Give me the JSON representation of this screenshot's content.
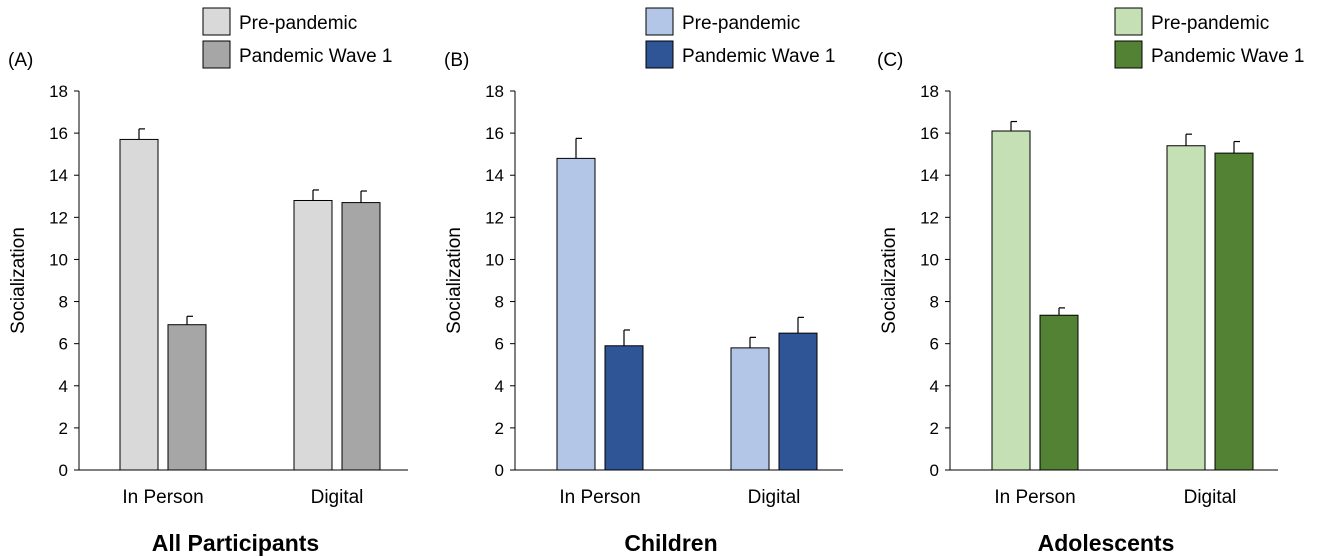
{
  "chart_data": [
    {
      "type": "bar",
      "panel_label": "(A)",
      "title": "All Participants",
      "ylabel": "Socialization",
      "xlabel": "",
      "ylim": [
        0,
        18
      ],
      "yticks": [
        "0",
        "2",
        "4",
        "6",
        "8",
        "10",
        "12",
        "14",
        "16",
        "18"
      ],
      "categories": [
        "In Person",
        "Digital"
      ],
      "series": [
        {
          "name": "Pre-pandemic",
          "values": [
            15.7,
            12.8
          ],
          "errors": [
            0.5,
            0.5
          ],
          "color": "#d9d9d9"
        },
        {
          "name": "Pandemic Wave 1",
          "values": [
            6.9,
            12.7
          ],
          "errors": [
            0.4,
            0.55
          ],
          "color": "#a6a6a6"
        }
      ]
    },
    {
      "type": "bar",
      "panel_label": "(B)",
      "title": "Children",
      "ylabel": "Socialization",
      "xlabel": "",
      "ylim": [
        0,
        18
      ],
      "yticks": [
        "0",
        "2",
        "4",
        "6",
        "8",
        "10",
        "12",
        "14",
        "16",
        "18"
      ],
      "categories": [
        "In Person",
        "Digital"
      ],
      "series": [
        {
          "name": "Pre-pandemic",
          "values": [
            14.8,
            5.8
          ],
          "errors": [
            0.95,
            0.5
          ],
          "color": "#b4c6e7"
        },
        {
          "name": "Pandemic Wave 1",
          "values": [
            5.9,
            6.5
          ],
          "errors": [
            0.75,
            0.75
          ],
          "color": "#2f5597"
        }
      ]
    },
    {
      "type": "bar",
      "panel_label": "(C)",
      "title": "Adolescents",
      "ylabel": "Socialization",
      "xlabel": "",
      "ylim": [
        0,
        18
      ],
      "yticks": [
        "0",
        "2",
        "4",
        "6",
        "8",
        "10",
        "12",
        "14",
        "16",
        "18"
      ],
      "categories": [
        "In Person",
        "Digital"
      ],
      "series": [
        {
          "name": "Pre-pandemic",
          "values": [
            16.1,
            15.4
          ],
          "errors": [
            0.45,
            0.55
          ],
          "color": "#c5e0b4"
        },
        {
          "name": "Pandemic Wave 1",
          "values": [
            7.35,
            15.05
          ],
          "errors": [
            0.35,
            0.55
          ],
          "color": "#548235"
        }
      ]
    }
  ]
}
